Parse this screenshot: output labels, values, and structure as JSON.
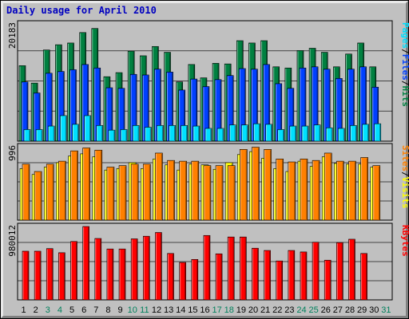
{
  "title": "Daily usage for April 2010",
  "colors": {
    "background": "#c0c0c0",
    "panel": "#c0c0c0",
    "pages": "#00e0ff",
    "files": "#0040ff",
    "hits": "#008040",
    "sites": "#ff8000",
    "visits": "#ffff00",
    "kbytes": "#ff0000",
    "weekday_label": "#000000",
    "weekend_label": "#00805c"
  },
  "chart_data": [
    {
      "type": "bar",
      "panel": "hits-files-pages",
      "ytick_label": "20183",
      "ylim": [
        0,
        20183
      ],
      "right_labels": [
        {
          "text": "Pages",
          "color": "#00e0ff"
        },
        {
          "text": "/",
          "color": "#000000"
        },
        {
          "text": "Files",
          "color": "#0040ff"
        },
        {
          "text": "/",
          "color": "#000000"
        },
        {
          "text": "Hits",
          "color": "#008040"
        }
      ],
      "categories": [
        "1",
        "2",
        "3",
        "4",
        "5",
        "6",
        "7",
        "8",
        "9",
        "10",
        "11",
        "12",
        "13",
        "14",
        "15",
        "16",
        "17",
        "18",
        "19",
        "20",
        "21",
        "22",
        "23",
        "24",
        "25",
        "26",
        "27",
        "28",
        "29",
        "30"
      ],
      "series": [
        {
          "name": "Hits",
          "color": "#008040",
          "values": [
            13000,
            10000,
            15700,
            16600,
            16900,
            18700,
            19400,
            11100,
            11800,
            15500,
            14700,
            16300,
            15300,
            10200,
            13200,
            10900,
            13400,
            13300,
            17300,
            16900,
            17300,
            12800,
            12600,
            15600,
            16000,
            15300,
            12800,
            15000,
            16900,
            12800
          ]
        },
        {
          "name": "Files",
          "color": "#0040ff",
          "values": [
            10200,
            8300,
            11700,
            12000,
            12300,
            13200,
            12600,
            9200,
            9100,
            11500,
            11400,
            12400,
            11900,
            8800,
            10700,
            9400,
            10600,
            11300,
            12500,
            12400,
            13200,
            9900,
            9100,
            12600,
            12800,
            12400,
            10800,
            12400,
            12800,
            9300
          ]
        },
        {
          "name": "Pages",
          "color": "#00e0ff",
          "values": [
            2000,
            2000,
            2600,
            4400,
            2900,
            4400,
            2700,
            1900,
            2000,
            2700,
            2400,
            2700,
            2700,
            2700,
            2600,
            2200,
            2200,
            2800,
            2800,
            3000,
            2900,
            2000,
            2600,
            2600,
            2800,
            2300,
            2200,
            2700,
            2900,
            3000
          ]
        }
      ]
    },
    {
      "type": "bar",
      "panel": "visits-sites",
      "ytick_label": "996",
      "ylim": [
        0,
        996
      ],
      "right_labels": [
        {
          "text": "Sites",
          "color": "#ff8000"
        },
        {
          "text": "/",
          "color": "#000000"
        },
        {
          "text": "Visits",
          "color": "#ffff00"
        }
      ],
      "categories": [
        "1",
        "2",
        "3",
        "4",
        "5",
        "6",
        "7",
        "8",
        "9",
        "10",
        "11",
        "12",
        "13",
        "14",
        "15",
        "16",
        "17",
        "18",
        "19",
        "20",
        "21",
        "22",
        "23",
        "24",
        "25",
        "26",
        "27",
        "28",
        "29",
        "30"
      ],
      "series": [
        {
          "name": "Visits",
          "color": "#ffff00",
          "values": [
            700,
            620,
            720,
            780,
            870,
            900,
            860,
            680,
            700,
            780,
            700,
            830,
            750,
            680,
            760,
            750,
            690,
            780,
            890,
            930,
            840,
            700,
            660,
            800,
            730,
            860,
            770,
            760,
            760,
            720
          ]
        },
        {
          "name": "Sites",
          "color": "#ff8000",
          "values": [
            760,
            660,
            760,
            800,
            940,
            980,
            950,
            720,
            740,
            760,
            760,
            910,
            810,
            800,
            800,
            740,
            740,
            740,
            960,
            990,
            960,
            830,
            790,
            830,
            810,
            910,
            800,
            800,
            850,
            740
          ]
        }
      ]
    },
    {
      "type": "bar",
      "panel": "kbytes",
      "ytick_label": "980012",
      "ylim": [
        0,
        980012
      ],
      "right_labels": [
        {
          "text": "KBytes",
          "color": "#ff0000"
        }
      ],
      "categories": [
        "1",
        "2",
        "3",
        "4",
        "5",
        "6",
        "7",
        "8",
        "9",
        "10",
        "11",
        "12",
        "13",
        "14",
        "15",
        "16",
        "17",
        "18",
        "19",
        "20",
        "21",
        "22",
        "23",
        "24",
        "25",
        "26",
        "27",
        "28",
        "29",
        "30"
      ],
      "series": [
        {
          "name": "KBytes",
          "color": "#ff0000",
          "values": [
            650000,
            650000,
            685000,
            630000,
            780000,
            980012,
            820000,
            680000,
            680000,
            815000,
            850000,
            900000,
            620000,
            500000,
            540000,
            860000,
            615000,
            840000,
            840000,
            690000,
            660000,
            520000,
            660000,
            640000,
            770000,
            530000,
            765000,
            810000,
            620000,
            0
          ]
        }
      ]
    }
  ],
  "x_labels": [
    {
      "text": "1",
      "weekend": false
    },
    {
      "text": "2",
      "weekend": false
    },
    {
      "text": "3",
      "weekend": true
    },
    {
      "text": "4",
      "weekend": true
    },
    {
      "text": "5",
      "weekend": false
    },
    {
      "text": "6",
      "weekend": false
    },
    {
      "text": "7",
      "weekend": false
    },
    {
      "text": "8",
      "weekend": false
    },
    {
      "text": "9",
      "weekend": false
    },
    {
      "text": "10",
      "weekend": true
    },
    {
      "text": "11",
      "weekend": true
    },
    {
      "text": "12",
      "weekend": false
    },
    {
      "text": "13",
      "weekend": false
    },
    {
      "text": "14",
      "weekend": false
    },
    {
      "text": "15",
      "weekend": false
    },
    {
      "text": "16",
      "weekend": false
    },
    {
      "text": "17",
      "weekend": true
    },
    {
      "text": "18",
      "weekend": true
    },
    {
      "text": "19",
      "weekend": false
    },
    {
      "text": "20",
      "weekend": false
    },
    {
      "text": "21",
      "weekend": false
    },
    {
      "text": "22",
      "weekend": false
    },
    {
      "text": "23",
      "weekend": false
    },
    {
      "text": "24",
      "weekend": true
    },
    {
      "text": "25",
      "weekend": true
    },
    {
      "text": "26",
      "weekend": false
    },
    {
      "text": "27",
      "weekend": false
    },
    {
      "text": "28",
      "weekend": false
    },
    {
      "text": "29",
      "weekend": false
    },
    {
      "text": "30",
      "weekend": false
    },
    {
      "text": "31",
      "weekend": true
    }
  ]
}
